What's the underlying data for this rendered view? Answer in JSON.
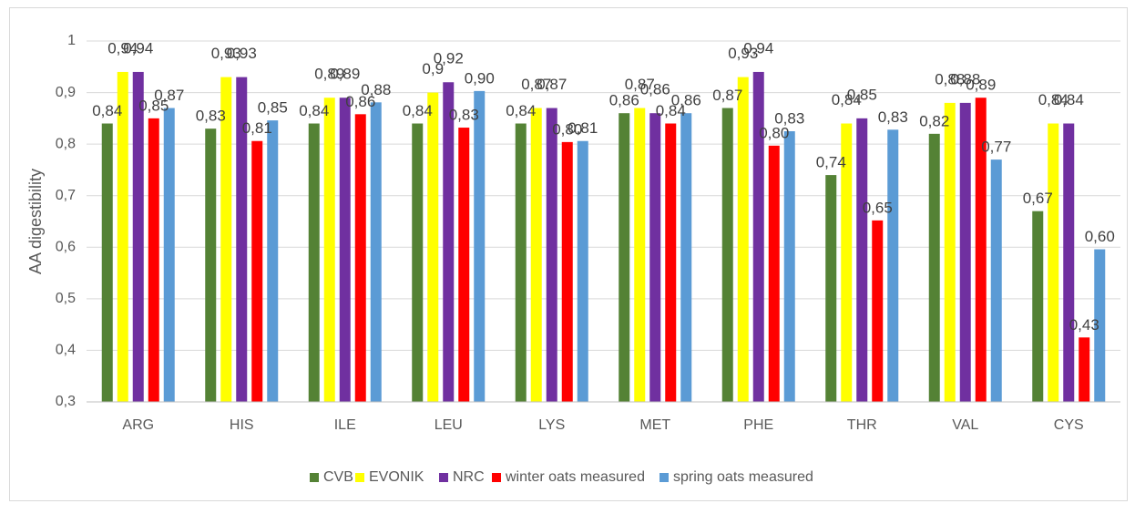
{
  "chart_data": {
    "type": "bar",
    "y_label": "AA digestibility",
    "categories": [
      "ARG",
      "HIS",
      "ILE",
      "LEU",
      "LYS",
      "MET",
      "PHE",
      "THR",
      "VAL",
      "CYS"
    ],
    "series": [
      {
        "name": "CVB",
        "color": "#548235",
        "values": [
          0.84,
          0.83,
          0.84,
          0.84,
          0.84,
          0.86,
          0.87,
          0.74,
          0.82,
          0.67
        ],
        "value_labels": [
          "0,84",
          "0,83",
          "0,84",
          "0,84",
          "0,84",
          "0,86",
          "0,87",
          "0,74",
          "0,82",
          "0,67"
        ]
      },
      {
        "name": "EVONIK",
        "color": "#ffff00",
        "values": [
          0.94,
          0.93,
          0.89,
          0.9,
          0.87,
          0.87,
          0.93,
          0.84,
          0.88,
          0.84
        ],
        "value_labels": [
          "0,94",
          "0,93",
          "0,89",
          "0,9",
          "0,87",
          "0,87",
          "0,93",
          "0,84",
          "0,88",
          "0,84"
        ]
      },
      {
        "name": "NRC",
        "color": "#7030a0",
        "values": [
          0.94,
          0.93,
          0.89,
          0.92,
          0.87,
          0.86,
          0.94,
          0.85,
          0.88,
          0.84
        ],
        "value_labels": [
          "0,94",
          "0,93",
          "0,89",
          "0,92",
          "0,87",
          "0,86",
          "0,94",
          "0,85",
          "0,88",
          "0,84"
        ]
      },
      {
        "name": "winter oats measured",
        "color": "#ff0000",
        "values": [
          0.85,
          0.806,
          0.858,
          0.832,
          0.804,
          0.84,
          0.797,
          0.652,
          0.89,
          0.425
        ],
        "value_labels": [
          "0,85",
          "0,81",
          "0,86",
          "0,83",
          "0,80",
          "0,84",
          "0,80",
          "0,65",
          "0,89",
          "0,43"
        ]
      },
      {
        "name": "spring oats measured",
        "color": "#5b9bd5",
        "values": [
          0.87,
          0.846,
          0.881,
          0.903,
          0.806,
          0.86,
          0.825,
          0.828,
          0.77,
          0.596
        ],
        "value_labels": [
          "0,87",
          "0,85",
          "0,88",
          "0,90",
          "0,81",
          "0,86",
          "0,83",
          "0,83",
          "0,77",
          "0,60"
        ]
      }
    ],
    "ylim": [
      0.3,
      1.0
    ],
    "yticks": [
      {
        "value": 0.3,
        "label": "0,3"
      },
      {
        "value": 0.4,
        "label": "0,4"
      },
      {
        "value": 0.5,
        "label": "0,5"
      },
      {
        "value": 0.6,
        "label": "0,6"
      },
      {
        "value": 0.7,
        "label": "0,7"
      },
      {
        "value": 0.8,
        "label": "0,8"
      },
      {
        "value": 0.9,
        "label": "0,9"
      },
      {
        "value": 1.0,
        "label": "1"
      }
    ],
    "grid": true,
    "legend": "bottom"
  }
}
